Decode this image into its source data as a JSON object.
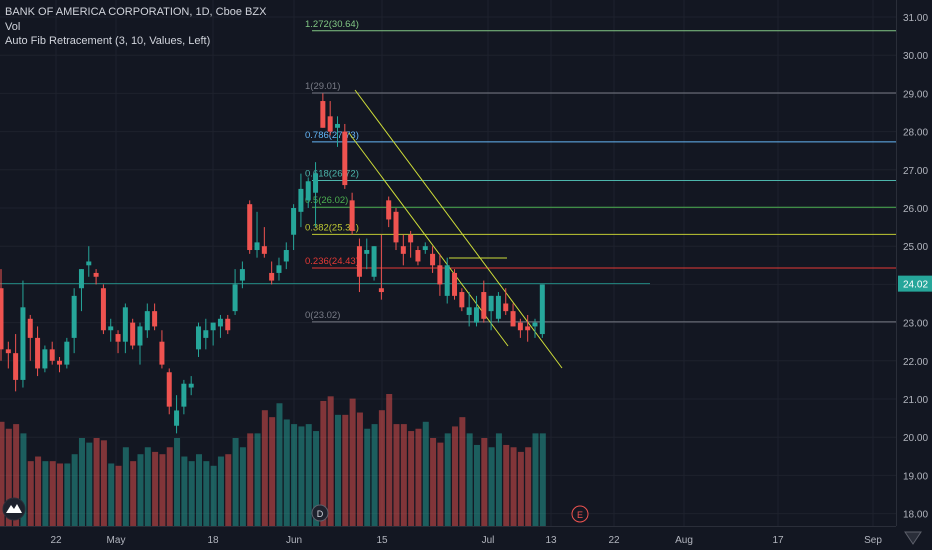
{
  "legend": {
    "symbol_line": "BANK OF AMERICA CORPORATION, 1D, Cboe BZX",
    "volume_label": "Vol",
    "indicator_label": "Auto Fib Retracement (3, 10, Values, Left)"
  },
  "colors": {
    "background": "#131722",
    "up": "#26a69a",
    "down": "#ef5350",
    "grid": "#1e222d",
    "text": "#b2b5be",
    "price_tag": "#26a69a"
  },
  "price_axis": {
    "ticks": [
      "31.00",
      "30.00",
      "29.00",
      "28.00",
      "27.00",
      "26.00",
      "25.00",
      "24.00",
      "23.00",
      "22.00",
      "21.00",
      "20.00",
      "19.00",
      "18.00"
    ],
    "current_price": "24.02"
  },
  "time_axis": {
    "ticks": [
      {
        "label": "22"
      },
      {
        "label": "May"
      },
      {
        "label": "18"
      },
      {
        "label": "Jun"
      },
      {
        "label": "15"
      },
      {
        "label": "Jul"
      },
      {
        "label": "13"
      },
      {
        "label": "22"
      },
      {
        "label": "Aug"
      },
      {
        "label": "17"
      },
      {
        "label": "Sep"
      }
    ]
  },
  "fib_levels": [
    {
      "label": "1.272(30.64)",
      "price": 30.64,
      "color": "#81c784"
    },
    {
      "label": "1(29.01)",
      "price": 29.01,
      "color": "#787b86"
    },
    {
      "label": "0.786(27.73)",
      "price": 27.73,
      "color": "#64b5f6"
    },
    {
      "label": "0.618(26.72)",
      "price": 26.72,
      "color": "#4db6ac"
    },
    {
      "label": "0.5(26.02)",
      "price": 26.02,
      "color": "#4caf50"
    },
    {
      "label": "0.382(25.31)",
      "price": 25.31,
      "color": "#c0ca33"
    },
    {
      "label": "0.236(24.43)",
      "price": 24.43,
      "color": "#e53935"
    },
    {
      "label": "0(23.02)",
      "price": 23.02,
      "color": "#787b86"
    }
  ],
  "events": [
    "D",
    "E"
  ],
  "chart_data": {
    "type": "candlestick",
    "ylim": [
      17.7,
      31.3
    ],
    "candles": [
      [
        23.9,
        24.4,
        22.0,
        22.3
      ],
      [
        22.3,
        22.5,
        21.8,
        22.2
      ],
      [
        22.2,
        22.7,
        21.2,
        21.5
      ],
      [
        21.5,
        24.1,
        21.3,
        23.4
      ],
      [
        23.1,
        23.2,
        22.0,
        22.6
      ],
      [
        22.6,
        22.9,
        21.6,
        21.8
      ],
      [
        21.8,
        22.4,
        21.7,
        22.3
      ],
      [
        22.3,
        22.5,
        21.9,
        22.0
      ],
      [
        22.0,
        22.1,
        21.7,
        21.9
      ],
      [
        21.9,
        22.6,
        21.8,
        22.5
      ],
      [
        22.6,
        23.9,
        22.2,
        23.7
      ],
      [
        23.9,
        24.4,
        23.3,
        24.4
      ],
      [
        24.5,
        25.0,
        24.2,
        24.6
      ],
      [
        24.3,
        24.4,
        24.0,
        24.2
      ],
      [
        23.9,
        24.0,
        22.7,
        22.8
      ],
      [
        22.8,
        23.1,
        22.5,
        22.9
      ],
      [
        22.7,
        22.8,
        22.2,
        22.5
      ],
      [
        22.5,
        23.5,
        22.2,
        23.4
      ],
      [
        23.0,
        23.1,
        22.3,
        22.4
      ],
      [
        22.4,
        23.0,
        21.9,
        22.9
      ],
      [
        22.8,
        23.5,
        22.6,
        23.3
      ],
      [
        23.3,
        23.5,
        22.8,
        22.9
      ],
      [
        22.5,
        22.8,
        21.8,
        21.9
      ],
      [
        21.7,
        21.8,
        20.6,
        20.8
      ],
      [
        20.3,
        21.1,
        20.1,
        20.7
      ],
      [
        20.8,
        21.5,
        20.6,
        21.4
      ],
      [
        21.3,
        21.6,
        21.1,
        21.4
      ],
      [
        22.3,
        23.0,
        22.1,
        22.9
      ],
      [
        22.6,
        23.1,
        22.3,
        22.8
      ],
      [
        22.8,
        23.0,
        22.4,
        23.0
      ],
      [
        22.9,
        23.2,
        22.6,
        23.1
      ],
      [
        23.1,
        23.2,
        22.7,
        22.8
      ],
      [
        23.3,
        24.4,
        23.2,
        24.0
      ],
      [
        24.1,
        24.6,
        23.9,
        24.4
      ],
      [
        26.1,
        26.2,
        24.8,
        24.9
      ],
      [
        24.9,
        25.9,
        24.7,
        25.1
      ],
      [
        25.0,
        25.5,
        24.7,
        24.8
      ],
      [
        24.3,
        24.6,
        24.0,
        24.1
      ],
      [
        24.3,
        24.7,
        24.1,
        24.5
      ],
      [
        24.6,
        25.1,
        24.4,
        24.9
      ],
      [
        25.3,
        26.1,
        24.9,
        26.0
      ],
      [
        25.9,
        26.9,
        25.5,
        26.5
      ],
      [
        26.2,
        26.8,
        26.0,
        26.7
      ],
      [
        26.4,
        27.2,
        25.5,
        26.9
      ],
      [
        28.8,
        29.0,
        28.1,
        28.1
      ],
      [
        28.4,
        28.8,
        27.9,
        28.0
      ],
      [
        28.1,
        28.4,
        27.6,
        28.2
      ],
      [
        28.0,
        28.2,
        26.5,
        26.6
      ],
      [
        26.2,
        26.4,
        25.3,
        25.4
      ],
      [
        25.0,
        25.2,
        23.8,
        24.2
      ],
      [
        24.8,
        25.2,
        24.4,
        24.9
      ],
      [
        24.2,
        25.0,
        24.1,
        25.0
      ],
      [
        23.9,
        25.3,
        23.6,
        23.8
      ],
      [
        26.2,
        26.3,
        25.5,
        25.7
      ],
      [
        25.9,
        26.0,
        24.9,
        25.1
      ],
      [
        25.0,
        25.3,
        24.5,
        24.8
      ],
      [
        25.3,
        25.4,
        24.7,
        25.1
      ],
      [
        24.9,
        25.0,
        24.5,
        24.6
      ],
      [
        24.9,
        25.1,
        24.8,
        25.0
      ],
      [
        24.8,
        25.0,
        24.3,
        24.5
      ],
      [
        24.5,
        24.8,
        23.7,
        24.0
      ],
      [
        23.7,
        24.7,
        23.5,
        24.5
      ],
      [
        24.3,
        24.4,
        23.6,
        23.7
      ],
      [
        23.8,
        23.9,
        23.3,
        23.4
      ],
      [
        23.2,
        23.8,
        22.9,
        23.4
      ],
      [
        23.0,
        23.7,
        22.9,
        23.4
      ],
      [
        23.8,
        24.1,
        23.0,
        23.1
      ],
      [
        23.3,
        23.7,
        22.8,
        23.7
      ],
      [
        23.1,
        23.8,
        23.0,
        23.7
      ],
      [
        23.5,
        23.9,
        23.2,
        23.3
      ],
      [
        23.3,
        23.5,
        22.9,
        22.9
      ],
      [
        23.0,
        23.1,
        22.6,
        22.8
      ],
      [
        22.9,
        23.2,
        22.5,
        22.8
      ],
      [
        22.9,
        23.1,
        22.6,
        23.0
      ],
      [
        22.7,
        24.0,
        22.6,
        24.0
      ]
    ],
    "volume": [
      45,
      42,
      44,
      40,
      28,
      30,
      28,
      28,
      27,
      27,
      31,
      38,
      36,
      38,
      37,
      27,
      26,
      34,
      28,
      31,
      34,
      32,
      31,
      34,
      38,
      30,
      28,
      31,
      28,
      26,
      30,
      31,
      38,
      34,
      40,
      40,
      50,
      47,
      53,
      46,
      44,
      43,
      44,
      41,
      54,
      56,
      48,
      48,
      55,
      49,
      42,
      44,
      50,
      57,
      44,
      44,
      41,
      42,
      45,
      38,
      36,
      40,
      43,
      47,
      40,
      35,
      38,
      34,
      40,
      35,
      34,
      32,
      34,
      40,
      40
    ]
  }
}
